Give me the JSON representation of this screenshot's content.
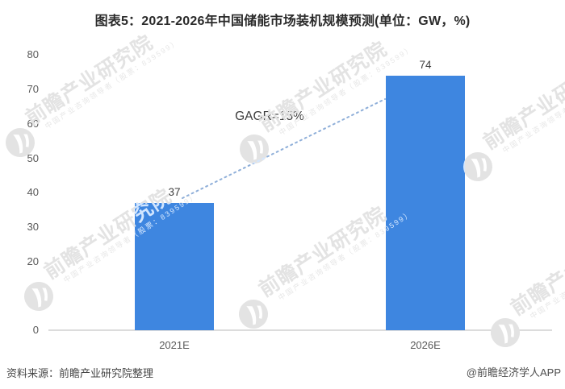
{
  "chart_data": {
    "type": "bar",
    "title": "图表5：2021-2026年中国储能市场装机规模预测(单位：GW，%)",
    "categories": [
      "2021E",
      "2026E"
    ],
    "values": [
      37,
      74
    ],
    "ylim": [
      0,
      80
    ],
    "ytick_step": 10,
    "yticks": [
      0,
      10,
      20,
      30,
      40,
      50,
      60,
      70,
      80
    ],
    "xlabel": "",
    "ylabel": "",
    "grid": false,
    "legend": "none",
    "bar_color": "#3E86E0",
    "annotation": "GAGR=15%",
    "trend_line": {
      "style": "dotted",
      "color": "#8FAFD9",
      "from": "2021E top",
      "to": "2026E top"
    }
  },
  "watermark": {
    "logo": "qianzhan-logo",
    "text_big": "前瞻产业研究院",
    "text_small": "中国产业咨询领导者（股票：839599）"
  },
  "footer": {
    "source": "资料来源：前瞻产业研究院整理",
    "credit": "@前瞻经济学人APP"
  },
  "colors": {
    "bar": "#3E86E0",
    "axis_line": "#DCDCDC",
    "title_text": "#2B2B2B",
    "tick_text": "#595959",
    "trend_line": "#8FAFD9",
    "watermark": "#E3E3E3"
  }
}
